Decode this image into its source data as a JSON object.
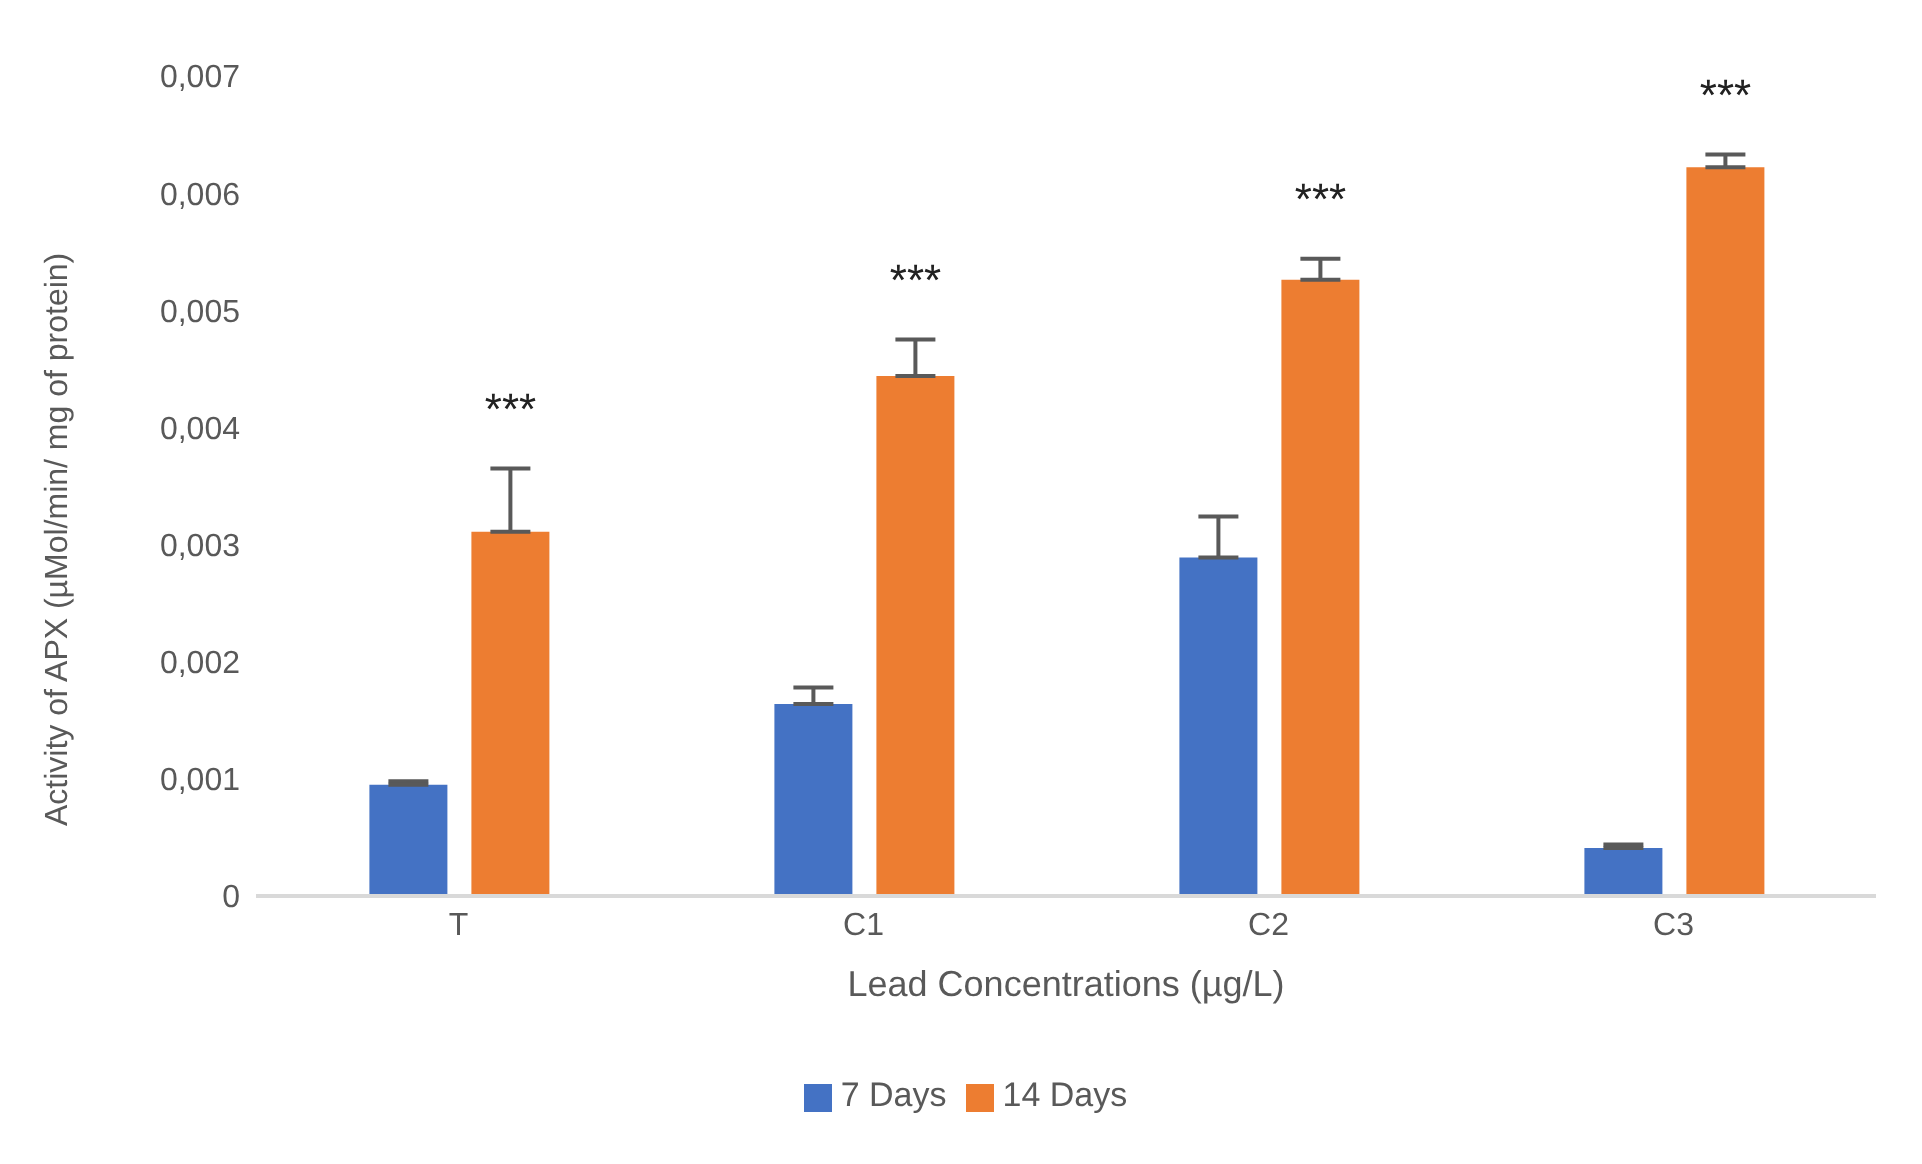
{
  "chart_data": {
    "type": "bar",
    "xlabel": "Lead Concentrations (µg/L)",
    "ylabel": "Activity of  APX (µMol/min/ mg of protein)",
    "categories": [
      "T",
      "C1",
      "C2",
      "C3"
    ],
    "series": [
      {
        "name": "7 Days",
        "color": "#4472c4",
        "values": [
          0.00095,
          0.00164,
          0.00289,
          0.00041
        ],
        "errors": [
          [
            0.00095,
            0.00098
          ],
          [
            0.00164,
            0.00178
          ],
          [
            0.00289,
            0.00324
          ],
          [
            0.00041,
            0.00044
          ]
        ]
      },
      {
        "name": "14 Days",
        "color": "#ed7d31",
        "values": [
          0.00311,
          0.00444,
          0.00526,
          0.00622
        ],
        "errors": [
          [
            0.00311,
            0.00365
          ],
          [
            0.00444,
            0.00475
          ],
          [
            0.00526,
            0.00544
          ],
          [
            0.00622,
            0.00633
          ]
        ]
      }
    ],
    "ylim": [
      0,
      0.007
    ],
    "yticks": [
      0,
      {
        "value": 0.001,
        "label": "0,001"
      },
      {
        "value": 0.002,
        "label": "0,002"
      },
      {
        "value": 0.003,
        "label": "0,003"
      },
      {
        "value": 0.004,
        "label": "0,004"
      },
      {
        "value": 0.005,
        "label": "0,005"
      },
      {
        "value": 0.006,
        "label": "0,006"
      },
      {
        "value": 0.007,
        "label": "0,007"
      }
    ],
    "annotations": [
      "***",
      "***",
      "***",
      "***"
    ],
    "legend": "bottom"
  }
}
